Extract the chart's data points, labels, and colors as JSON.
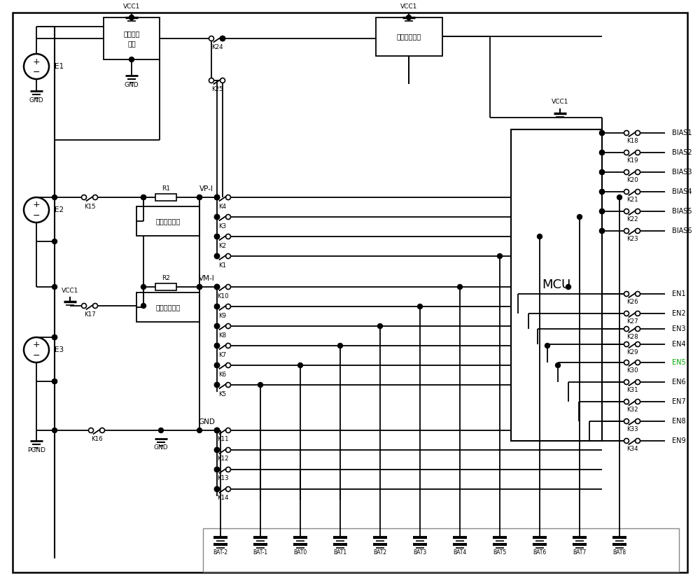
{
  "bg": "#ffffff",
  "lc": "#000000",
  "fig_w": 10.0,
  "fig_h": 8.36,
  "dpi": 100,
  "bias_labels": [
    "BIAS1",
    "BIAS2",
    "BIAS3",
    "BIAS4",
    "BIAS5",
    "BIAS6"
  ],
  "bias_k": [
    "K18",
    "K19",
    "K20",
    "K21",
    "K22",
    "K23"
  ],
  "en_labels": [
    "EN1",
    "EN2",
    "EN3",
    "EN4",
    "EN5",
    "EN6",
    "EN7",
    "EN8",
    "EN9"
  ],
  "en_k": [
    "K26",
    "K27",
    "K28",
    "K29",
    "K30",
    "K31",
    "K32",
    "K33",
    "K34"
  ],
  "bat_labels": [
    "BAT-2",
    "BAT-1",
    "BAT0",
    "BAT1",
    "BAT2",
    "BAT3",
    "BAT4",
    "BAT5",
    "BAT6",
    "BAT7",
    "BAT8"
  ],
  "vp_k": [
    "K4",
    "K3",
    "K2",
    "K1"
  ],
  "vm_k": [
    "K10",
    "K9",
    "K8",
    "K7",
    "K6",
    "K5"
  ],
  "gnd_k": [
    "K11",
    "K12",
    "K13",
    "K14"
  ],
  "en5_color": "#00aa00"
}
